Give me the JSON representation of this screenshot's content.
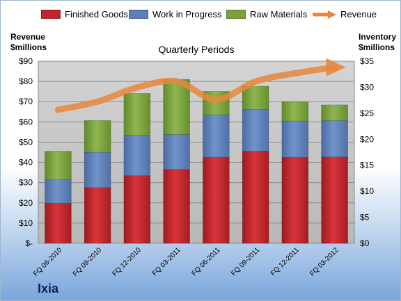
{
  "legend": {
    "finished": "Finished Goods",
    "wip": "Work in Progress",
    "raw": "Raw Materials",
    "revenue": "Revenue"
  },
  "left_axis_title": [
    "Revenue",
    "$millions"
  ],
  "right_axis_title": [
    "Inventory",
    "$millions"
  ],
  "brand": "Ixia",
  "colors": {
    "finished": "#c0262c",
    "wip": "#5b7fb9",
    "raw": "#7aa23b",
    "revenue": "#e8873c",
    "plot_bg": "#c7c7c7"
  },
  "chart_data": {
    "type": "bar",
    "stacked": true,
    "title": "Quarterly Periods",
    "categories": [
      "FQ 06-2010",
      "FQ 09-2010",
      "FQ 12-2010",
      "FQ 03-2011",
      "FQ 06-2011",
      "FQ 09-2011",
      "FQ 12-2011",
      "FQ 03-2012"
    ],
    "series": [
      {
        "name": "Finished Goods",
        "axis": "right",
        "values": [
          7.7,
          10.7,
          13.0,
          14.2,
          16.5,
          17.7,
          16.5,
          16.6
        ]
      },
      {
        "name": "Work in Progress",
        "axis": "right",
        "values": [
          4.5,
          6.8,
          7.8,
          6.7,
          8.2,
          8.0,
          7.0,
          7.0
        ]
      },
      {
        "name": "Raw Materials",
        "axis": "right",
        "values": [
          5.5,
          6.1,
          8.0,
          10.6,
          4.5,
          4.5,
          3.7,
          3.0
        ]
      },
      {
        "name": "Revenue",
        "type": "line",
        "axis": "left",
        "values": [
          66,
          70,
          77,
          80,
          71,
          80,
          84,
          87
        ]
      }
    ],
    "left_axis": {
      "ylim": [
        0,
        90
      ],
      "ticks": [
        "$-",
        "$10",
        "$20",
        "$30",
        "$40",
        "$50",
        "$60",
        "$70",
        "$80",
        "$90"
      ]
    },
    "right_axis": {
      "ylim": [
        0,
        35
      ],
      "ticks": [
        "$0",
        "$5",
        "$10",
        "$15",
        "$20",
        "$25",
        "$30",
        "$35"
      ]
    },
    "grid": true,
    "legend_position": "top"
  }
}
